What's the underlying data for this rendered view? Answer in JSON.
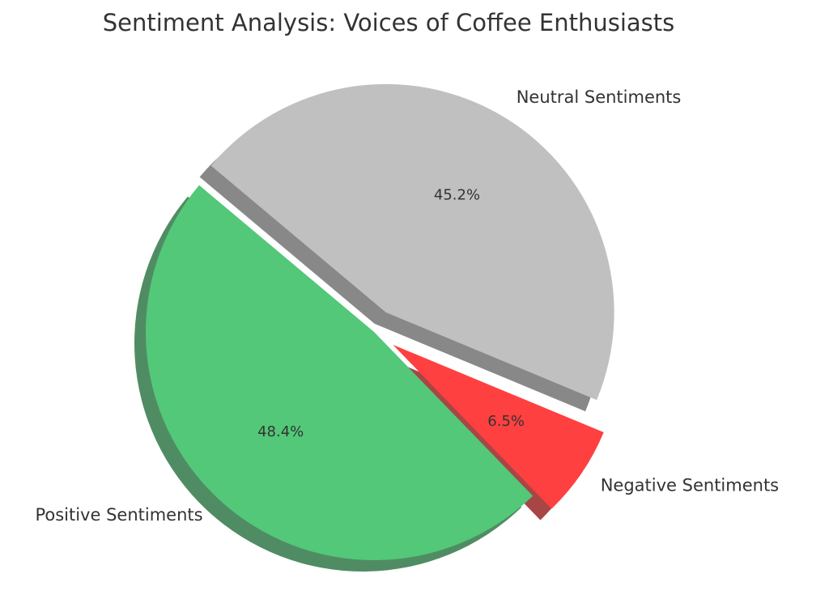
{
  "chart_data": {
    "type": "pie",
    "title": "Sentiment Analysis: Voices of Coffee Enthusiasts",
    "slices": [
      {
        "label": "Positive Sentiments",
        "value": 48.4,
        "display": "48.4%",
        "color": "#52c878",
        "exploded": false
      },
      {
        "label": "Negative Sentiments",
        "value": 6.5,
        "display": "6.5%",
        "color": "#ff4040",
        "exploded": true
      },
      {
        "label": "Neutral Sentiments",
        "value": 45.2,
        "display": "45.2%",
        "color": "#c0c0c0",
        "exploded": true
      }
    ],
    "start_angle_deg": 140,
    "direction": "counterclockwise",
    "shadow": true,
    "legend": "none"
  }
}
